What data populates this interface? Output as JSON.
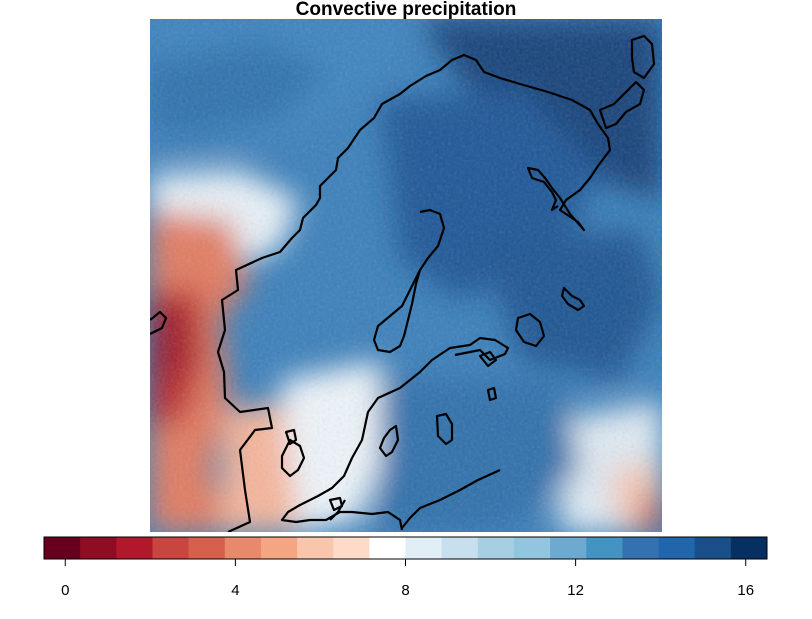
{
  "title": "Convective precipitation",
  "colorbar": {
    "min": -0.5,
    "max": 16.5,
    "ticks": [
      "0",
      "4",
      "8",
      "12",
      "16"
    ],
    "tick_values": [
      0,
      4,
      8,
      12,
      16
    ],
    "colors": [
      "#67001f",
      "#8e0d25",
      "#b2182b",
      "#c9453f",
      "#d6604d",
      "#e8896b",
      "#f4a582",
      "#f9c6ab",
      "#fddbc7",
      "#ffffff",
      "#e2eef5",
      "#c8e0ee",
      "#a7cfe4",
      "#92c5de",
      "#6eaad0",
      "#4393c3",
      "#3371b0",
      "#2166ac",
      "#1a4f8a",
      "#053061"
    ]
  },
  "palette": {
    "coast": "#000000",
    "red_extreme": "#67001f",
    "blue_extreme": "#053061"
  }
}
